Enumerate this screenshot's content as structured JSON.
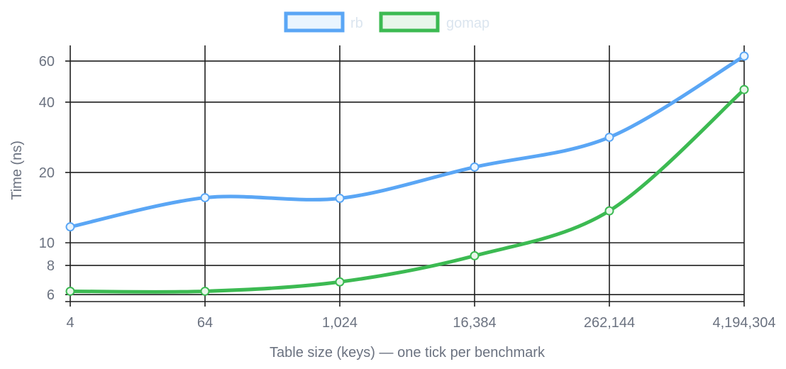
{
  "chart_data": {
    "type": "line",
    "xlabel": "Table size (keys) — one tick per benchmark",
    "ylabel": "Time (ns)",
    "x": [
      "4",
      "64",
      "1,024",
      "16,384",
      "262,144",
      "4,194,304"
    ],
    "y_scale": "log",
    "ylim": [
      5.6,
      70
    ],
    "yticks": [
      6,
      8,
      10,
      20,
      40,
      60
    ],
    "grid": true,
    "legend_position": "top-center",
    "series": [
      {
        "name": "rb",
        "color": "#5aa6f5",
        "fill": "#eaf5fe",
        "values": [
          11.7,
          15.6,
          15.5,
          21.1,
          28.3,
          63.0
        ]
      },
      {
        "name": "gomap",
        "color": "#3cba52",
        "fill": "#e8f6ea",
        "values": [
          6.2,
          6.2,
          6.8,
          8.8,
          13.7,
          45.3
        ]
      }
    ]
  }
}
